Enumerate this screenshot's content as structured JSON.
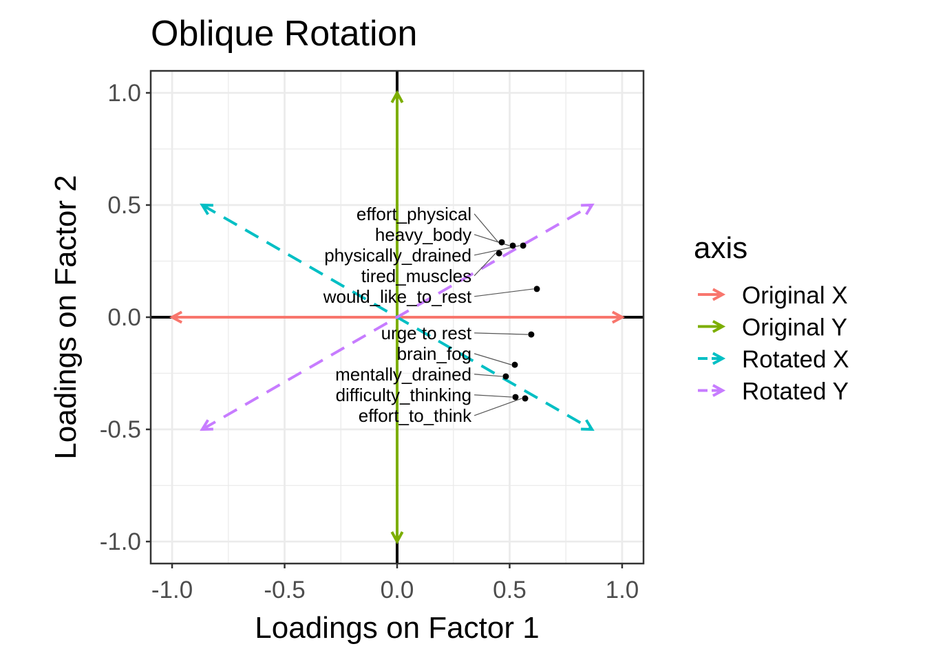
{
  "chart_data": {
    "type": "scatter",
    "title": "Oblique Rotation",
    "xlabel": "Loadings on Factor 1",
    "ylabel": "Loadings on Factor 2",
    "xlim": [
      -1.095,
      1.095
    ],
    "ylim": [
      -1.098,
      1.098
    ],
    "xticks": [
      {
        "v": -1,
        "label": "-1.0"
      },
      {
        "v": -0.5,
        "label": "-0.5"
      },
      {
        "v": 0,
        "label": "0.0"
      },
      {
        "v": 0.5,
        "label": "0.5"
      },
      {
        "v": 1,
        "label": "1.0"
      }
    ],
    "yticks": [
      {
        "v": -1,
        "label": "-1.0"
      },
      {
        "v": -0.5,
        "label": "-0.5"
      },
      {
        "v": 0,
        "label": "0.0"
      },
      {
        "v": 0.5,
        "label": "0.5"
      },
      {
        "v": 1,
        "label": "1.0"
      }
    ],
    "grid": true,
    "legend": {
      "title": "axis",
      "placement": "right",
      "entries": [
        {
          "label": "Original X",
          "color": "#F8766D",
          "dashed": false
        },
        {
          "label": "Original Y",
          "color": "#7CAE00",
          "dashed": false
        },
        {
          "label": "Rotated X",
          "color": "#00BFC4",
          "dashed": true
        },
        {
          "label": "Rotated Y",
          "color": "#C77CFF",
          "dashed": true
        }
      ]
    },
    "arrows": [
      {
        "name": "Original X",
        "from": [
          -1,
          0
        ],
        "to": [
          1,
          0
        ],
        "color": "#F8766D",
        "dashed": false
      },
      {
        "name": "Original Y",
        "from": [
          0,
          -1
        ],
        "to": [
          0,
          1
        ],
        "color": "#7CAE00",
        "dashed": false
      },
      {
        "name": "Rotated X",
        "from": [
          -0.866,
          0.5
        ],
        "to": [
          0.866,
          -0.5
        ],
        "color": "#00BFC4",
        "dashed": true
      },
      {
        "name": "Rotated Y",
        "from": [
          -0.866,
          -0.5
        ],
        "to": [
          0.866,
          0.5
        ],
        "color": "#C77CFF",
        "dashed": true
      }
    ],
    "points": [
      {
        "x": 0.465,
        "y": 0.334,
        "label": "effort_physical",
        "label_x": 0.612
      },
      {
        "x": 0.514,
        "y": 0.319,
        "label": "heavy_body",
        "label_x": 0.57
      },
      {
        "x": 0.56,
        "y": 0.319,
        "label": "physically_drained",
        "label_x": 0.59
      },
      {
        "x": 0.453,
        "y": 0.285,
        "label": "tired_muscles",
        "label_x": 0.566
      },
      {
        "x": 0.621,
        "y": 0.126,
        "label": "would_like_to_rest",
        "label_x": 0.768
      },
      {
        "x": 0.596,
        "y": -0.077,
        "label": "urge to rest",
        "label_x": 0.691
      },
      {
        "x": 0.523,
        "y": -0.212,
        "label": "brain_fog",
        "label_x": 0.599
      },
      {
        "x": 0.483,
        "y": -0.264,
        "label": "mentally_drained",
        "label_x": 0.621
      },
      {
        "x": 0.526,
        "y": -0.356,
        "label": "difficulty_thinking",
        "label_x": 0.719
      },
      {
        "x": 0.569,
        "y": -0.362,
        "label": "effort_to_think",
        "label_x": 0.682
      }
    ]
  }
}
